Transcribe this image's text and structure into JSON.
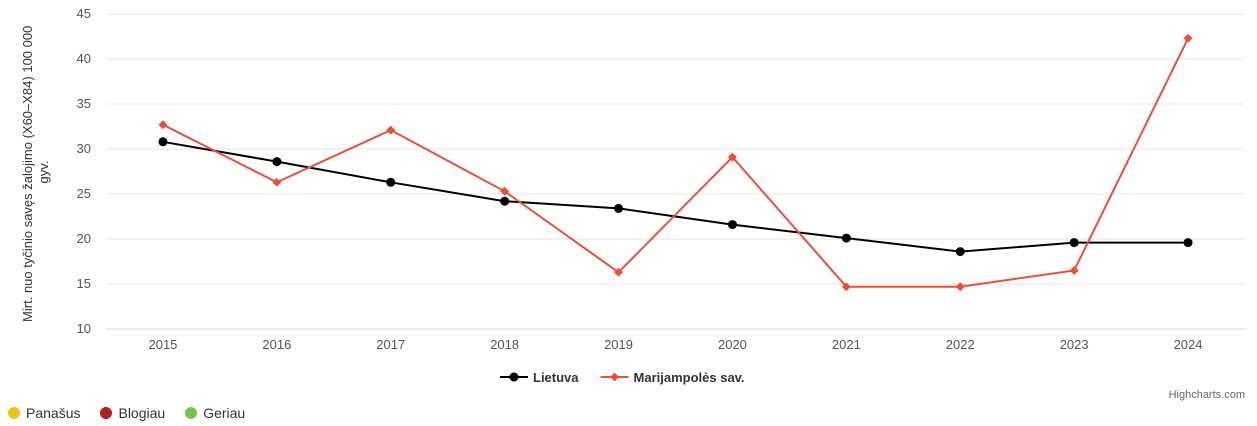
{
  "chart_data": {
    "type": "line",
    "title": "",
    "xlabel": "",
    "ylabel_lines": [
      "Mirt. nuo tyčinio savęs žalojimo (X60–X84) 100 000",
      "gyv."
    ],
    "categories": [
      "2015",
      "2016",
      "2017",
      "2018",
      "2019",
      "2020",
      "2021",
      "2022",
      "2023",
      "2024"
    ],
    "ylim": [
      10,
      45
    ],
    "yticks": [
      10,
      15,
      20,
      25,
      30,
      35,
      40,
      45
    ],
    "grid": true,
    "legend_position": "bottom-center",
    "series": [
      {
        "name": "Lietuva",
        "color": "#000000",
        "marker": "circle",
        "values": [
          30.8,
          28.6,
          26.3,
          24.2,
          23.4,
          21.6,
          20.1,
          18.6,
          19.6,
          19.6
        ]
      },
      {
        "name": "Marijampolės sav.",
        "color": "#e8503a",
        "marker": "diamond",
        "values": [
          32.7,
          26.3,
          32.1,
          25.3,
          16.3,
          29.1,
          14.7,
          14.7,
          16.5,
          42.3
        ]
      }
    ]
  },
  "credit": "Highcharts.com",
  "status_legend": [
    {
      "label": "Panašus",
      "color": "#f0c419"
    },
    {
      "label": "Blogiau",
      "color": "#b01e1e"
    },
    {
      "label": "Geriau",
      "color": "#7cc24a"
    }
  ]
}
